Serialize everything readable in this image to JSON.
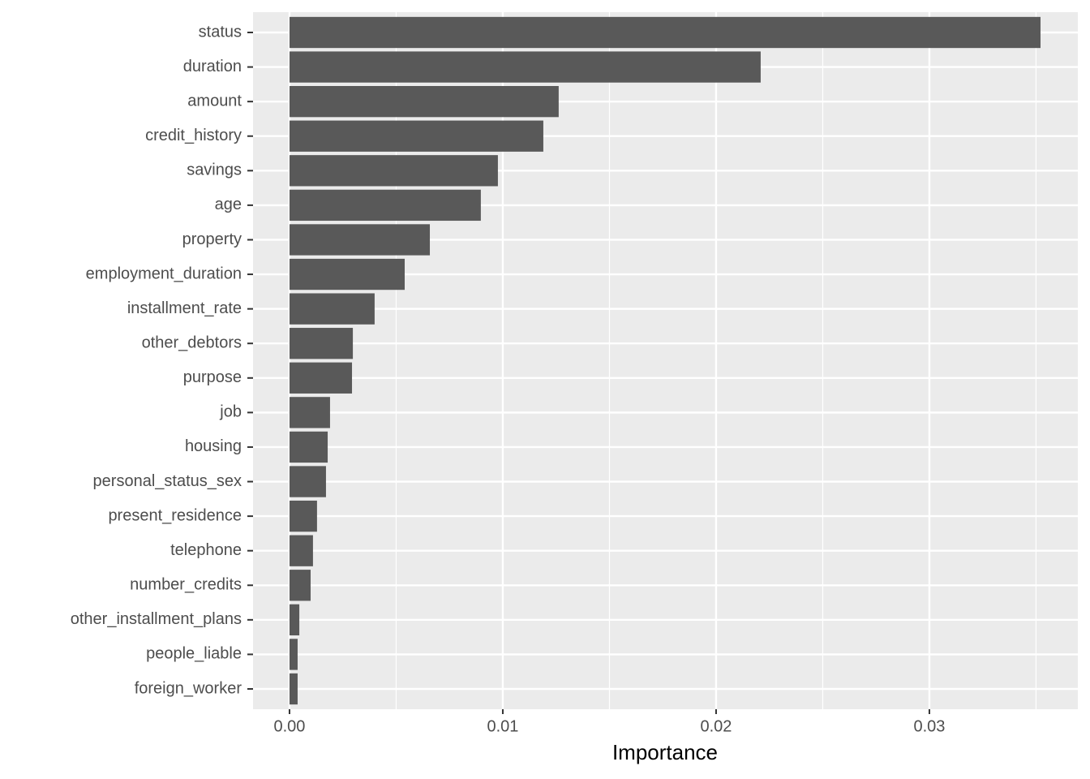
{
  "chart_data": {
    "type": "bar",
    "orientation": "horizontal",
    "x_label": "Importance",
    "categories": [
      "status",
      "duration",
      "amount",
      "credit_history",
      "savings",
      "age",
      "property",
      "employment_duration",
      "installment_rate",
      "other_debtors",
      "purpose",
      "job",
      "housing",
      "personal_status_sex",
      "present_residence",
      "telephone",
      "number_credits",
      "other_installment_plans",
      "people_liable",
      "foreign_worker"
    ],
    "values": [
      0.03521,
      0.02209,
      0.01262,
      0.0119,
      0.00977,
      0.00897,
      0.00658,
      0.0054,
      0.00399,
      0.00297,
      0.00293,
      0.0019,
      0.00179,
      0.00171,
      0.00129,
      0.0011,
      0.00099,
      0.00046,
      0.00038,
      0.00038
    ],
    "color": "#595959",
    "xlim": [
      -0.00171,
      0.03696
    ],
    "xticks": [
      {
        "value": 0,
        "label": "0.00"
      },
      0.01,
      0.02,
      0.03
    ],
    "minor_xticks": [
      0.005,
      0.015,
      0.025,
      0.035
    ],
    "grid": true
  }
}
